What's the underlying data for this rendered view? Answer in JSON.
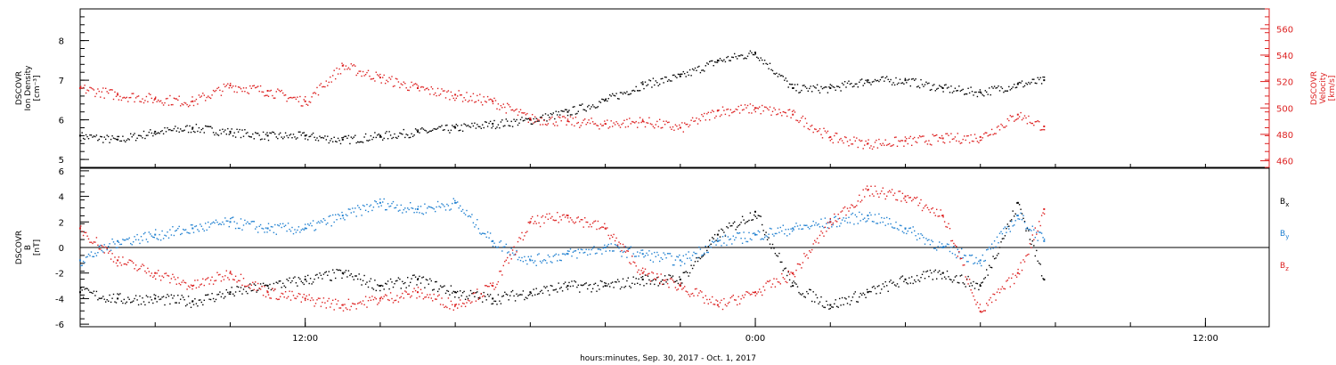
{
  "colors": {
    "black": "#000000",
    "red": "#dd2020",
    "blue": "#1e7fd0",
    "ink": "#000000"
  },
  "footer_label": "hours:minutes, Sep. 30, 2017 - Oct. 1, 2017",
  "x_axis": {
    "ticks": [
      {
        "label": "12:00",
        "hours": 12
      },
      {
        "label": "0:00",
        "hours": 24
      },
      {
        "label": "12:00",
        "hours": 36
      }
    ],
    "range_hours": [
      6,
      37.7
    ]
  },
  "chart_data": [
    {
      "type": "scatter",
      "title": "",
      "ylabel_lines": [
        "DSCOVR",
        "Ion Density",
        "[cm⁻³]"
      ],
      "ylabel_right_lines": [
        "DSCOVR",
        "Velocity",
        "[km/s]"
      ],
      "ylim": [
        4.8,
        8.8
      ],
      "ylim_right": [
        455,
        575
      ],
      "y_ticks": [
        "5",
        "6",
        "7",
        "8"
      ],
      "y_ticks_right": [
        "460",
        "480",
        "500",
        "520",
        "540",
        "560"
      ],
      "series": [
        {
          "name": "",
          "axis": "left",
          "color": "black",
          "x": [
            6.0,
            7.0,
            8.0,
            9.0,
            10.0,
            11.0,
            12.0,
            13.0,
            14.0,
            15.0,
            16.0,
            17.0,
            18.0,
            19.0,
            20.0,
            21.0,
            22.0,
            23.0,
            24.0,
            25.0,
            26.0,
            27.0,
            28.0,
            29.0,
            30.0,
            31.0,
            31.7
          ],
          "y": [
            5.6,
            5.5,
            5.7,
            5.8,
            5.7,
            5.6,
            5.6,
            5.5,
            5.6,
            5.7,
            5.8,
            5.9,
            6.0,
            6.2,
            6.5,
            6.9,
            7.1,
            7.5,
            7.7,
            6.8,
            6.8,
            7.0,
            7.0,
            6.8,
            6.7,
            6.9,
            7.0
          ]
        },
        {
          "name": "",
          "axis": "right",
          "color": "red",
          "x": [
            6.0,
            7.0,
            8.0,
            9.0,
            10.0,
            11.0,
            12.0,
            13.0,
            14.0,
            15.0,
            16.0,
            17.0,
            18.0,
            19.0,
            20.0,
            21.0,
            22.0,
            23.0,
            24.0,
            25.0,
            26.0,
            27.0,
            28.0,
            29.0,
            30.0,
            31.0,
            31.7
          ],
          "y": [
            515,
            510,
            507,
            505,
            517,
            513,
            505,
            532,
            523,
            515,
            510,
            505,
            492,
            490,
            488,
            490,
            485,
            498,
            500,
            495,
            478,
            473,
            475,
            477,
            478,
            495,
            486
          ]
        }
      ]
    },
    {
      "type": "scatter",
      "title": "",
      "ylabel_lines": [
        "DSCOVR",
        "B",
        "[nT]"
      ],
      "ylim": [
        -6.2,
        6.2
      ],
      "y_ticks": [
        "-6",
        "-4",
        "-2",
        "0",
        "2",
        "4",
        "6"
      ],
      "zero_line": true,
      "series": [
        {
          "name": "Bx",
          "color": "black",
          "x": [
            6.0,
            7.0,
            8.0,
            9.0,
            10.0,
            11.0,
            12.0,
            13.0,
            14.0,
            15.0,
            16.0,
            17.0,
            18.0,
            19.0,
            20.0,
            21.0,
            22.0,
            23.0,
            24.0,
            25.0,
            26.0,
            27.0,
            28.0,
            29.0,
            30.0,
            31.0,
            31.7
          ],
          "y": [
            -3.5,
            -4.0,
            -4.0,
            -4.2,
            -3.5,
            -3.0,
            -2.5,
            -2.0,
            -3.0,
            -2.5,
            -3.5,
            -4.0,
            -3.5,
            -3.0,
            -3.0,
            -2.5,
            -2.5,
            1.0,
            2.8,
            -3.0,
            -4.5,
            -3.5,
            -2.5,
            -2.0,
            -3.0,
            3.5,
            -2.5
          ]
        },
        {
          "name": "By",
          "color": "blue",
          "x": [
            6.0,
            7.0,
            8.0,
            9.0,
            10.0,
            11.0,
            12.0,
            13.0,
            14.0,
            15.0,
            16.0,
            17.0,
            18.0,
            19.0,
            20.0,
            21.0,
            22.0,
            23.0,
            24.0,
            25.0,
            26.0,
            27.0,
            28.0,
            29.0,
            30.0,
            31.0,
            31.7
          ],
          "y": [
            -1.0,
            0.5,
            1.0,
            1.5,
            2.0,
            1.5,
            1.5,
            2.5,
            3.5,
            3.0,
            3.5,
            0.5,
            -1.0,
            -0.5,
            0.0,
            -0.5,
            -1.0,
            0.5,
            1.0,
            1.5,
            2.0,
            2.5,
            1.5,
            0.0,
            -1.0,
            2.5,
            0.5
          ]
        },
        {
          "name": "Bz",
          "color": "red",
          "x": [
            6.0,
            7.0,
            8.0,
            9.0,
            10.0,
            11.0,
            12.0,
            13.0,
            14.0,
            15.0,
            16.0,
            17.0,
            18.0,
            19.0,
            20.0,
            21.0,
            22.0,
            23.0,
            24.0,
            25.0,
            26.0,
            27.0,
            28.0,
            29.0,
            30.0,
            31.0,
            31.7
          ],
          "y": [
            1.5,
            -1.0,
            -2.0,
            -3.0,
            -2.0,
            -3.5,
            -4.0,
            -4.5,
            -4.0,
            -3.5,
            -4.5,
            -3.0,
            2.0,
            2.5,
            1.5,
            -2.0,
            -3.0,
            -4.5,
            -3.5,
            -2.0,
            2.0,
            4.5,
            4.0,
            2.5,
            -5.0,
            -2.0,
            3.0
          ]
        }
      ]
    }
  ]
}
